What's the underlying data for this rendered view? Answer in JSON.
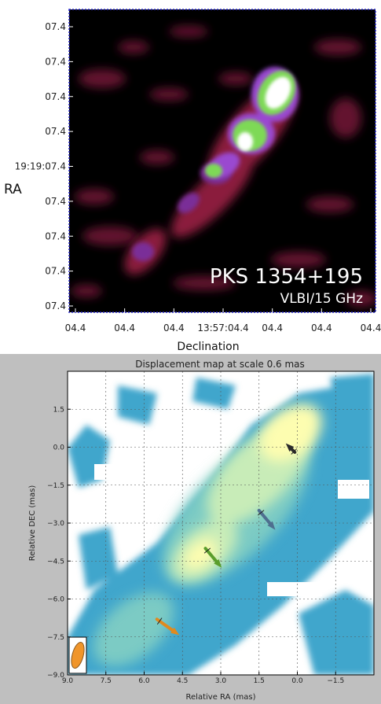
{
  "chart_data": [
    {
      "type": "heatmap",
      "title": "",
      "xlabel": "Declination",
      "ylabel": "RA",
      "x_ticks": [
        "04.4",
        "04.4",
        "04.4",
        "13:57:04.4",
        "04.4",
        "04.4",
        "04.4"
      ],
      "y_ticks": [
        "07.4",
        "07.4",
        "07.4",
        "07.4",
        "19:19:07.4",
        "07.4",
        "07.4",
        "07.4",
        "07.4"
      ],
      "annotations": [
        "PKS 1354+195",
        "VLBI/15 GHz"
      ],
      "colors": {
        "background": "#000000",
        "low": "#8b1a3e",
        "mid": "#8a3aa8",
        "high": "#7ed957",
        "peak": "#ffffff"
      },
      "grid": false
    },
    {
      "type": "heatmap",
      "title": "Displacement map at scale 0.6 mas",
      "xlabel": "Relative RA (mas)",
      "ylabel": "Relative DEC (mas)",
      "xlim": [
        9.0,
        -3.0
      ],
      "ylim": [
        -9.0,
        3.0
      ],
      "x_ticks": [
        "9.0",
        "7.5",
        "6.0",
        "4.5",
        "3.0",
        "1.5",
        "0.0",
        "−1.5"
      ],
      "y_ticks": [
        "1.5",
        "0.0",
        "−1.5",
        "−3.0",
        "−4.5",
        "−6.0",
        "−7.5",
        "−9.0"
      ],
      "grid": true,
      "colors": {
        "empty": "#ffffff",
        "low": "#3aa0c8",
        "mid": "#8fd0c0",
        "high": "#fdfdb0"
      },
      "arrows": [
        {
          "x": 0.1,
          "y": -0.2,
          "dx": 0.2,
          "dy": 0.2,
          "color": "#2b2b2b"
        },
        {
          "x": 1.5,
          "y": -2.5,
          "dx": -0.5,
          "dy": -0.6,
          "color": "#4e6f8f"
        },
        {
          "x": 3.6,
          "y": -4.0,
          "dx": -0.5,
          "dy": -0.6,
          "color": "#5a9e2c"
        },
        {
          "x": 5.5,
          "y": -6.8,
          "dx": -0.7,
          "dy": -0.5,
          "color": "#e08a1e"
        }
      ],
      "beam": {
        "color": "#f0952a"
      }
    }
  ]
}
